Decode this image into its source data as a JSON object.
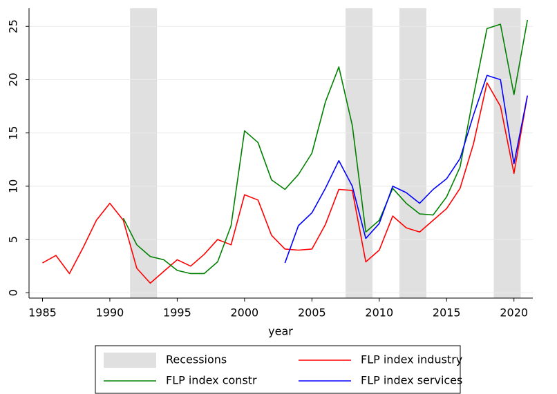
{
  "chart_data": {
    "type": "line",
    "x_label": "year",
    "x": [
      1985,
      1986,
      1987,
      1988,
      1989,
      1990,
      1991,
      1992,
      1993,
      1994,
      1995,
      1996,
      1997,
      1998,
      1999,
      2000,
      2001,
      2002,
      2003,
      2004,
      2005,
      2006,
      2007,
      2008,
      2009,
      2010,
      2011,
      2012,
      2013,
      2014,
      2015,
      2016,
      2017,
      2018,
      2019,
      2020,
      2021
    ],
    "recessions": {
      "name": "Recessions",
      "color": "#e0e0e0",
      "periods": [
        [
          1991.5,
          1993.5
        ],
        [
          2007.5,
          2009.5
        ],
        [
          2011.5,
          2013.5
        ],
        [
          2018.5,
          2020.5
        ]
      ]
    },
    "series": [
      {
        "name": "FLP index industry",
        "color": "#ff0000",
        "values": [
          2.8,
          3.5,
          1.8,
          4.2,
          6.8,
          8.4,
          6.8,
          2.3,
          0.9,
          2.0,
          3.1,
          2.5,
          3.6,
          5.0,
          4.5,
          9.2,
          8.7,
          5.4,
          4.1,
          4.0,
          4.1,
          6.4,
          9.7,
          9.6,
          2.9,
          4.0,
          7.2,
          6.1,
          5.7,
          6.8,
          7.9,
          9.8,
          14.0,
          19.7,
          17.5,
          11.2,
          18.5
        ]
      },
      {
        "name": "FLP index constr",
        "color": "#008000",
        "values": [
          null,
          null,
          null,
          null,
          null,
          null,
          7.0,
          4.5,
          3.4,
          3.1,
          2.1,
          1.8,
          1.8,
          2.9,
          6.3,
          15.2,
          14.1,
          10.6,
          9.7,
          11.1,
          13.1,
          17.9,
          21.2,
          15.7,
          5.7,
          6.8,
          9.8,
          8.4,
          7.4,
          7.3,
          9.0,
          11.8,
          18.5,
          24.8,
          25.2,
          18.6,
          25.6
        ]
      },
      {
        "name": "FLP index services",
        "color": "#0000ff",
        "values": [
          null,
          null,
          null,
          null,
          null,
          null,
          null,
          null,
          null,
          null,
          null,
          null,
          null,
          null,
          null,
          null,
          null,
          null,
          2.8,
          6.3,
          7.5,
          9.8,
          12.4,
          10.0,
          5.1,
          6.5,
          10.0,
          9.4,
          8.4,
          9.7,
          10.7,
          12.6,
          16.7,
          20.4,
          20.0,
          12.1,
          18.5
        ]
      }
    ],
    "xlim": [
      1984,
      2021.4
    ],
    "xticks": [
      1985,
      1990,
      1995,
      2000,
      2005,
      2010,
      2015,
      2020
    ],
    "ylim": [
      -0.5,
      26.7
    ],
    "yticks": [
      0,
      5,
      10,
      15,
      20,
      25
    ],
    "grid": true,
    "legend": "bottom"
  }
}
